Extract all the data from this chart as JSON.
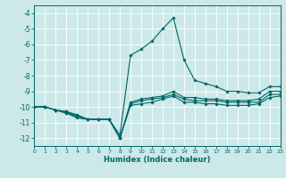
{
  "xlabel": "Humidex (Indice chaleur)",
  "background_color": "#cce8e8",
  "grid_color": "#ffffff",
  "line_color": "#006666",
  "xlim": [
    0,
    23
  ],
  "ylim": [
    -12.5,
    -3.5
  ],
  "yticks": [
    -12,
    -11,
    -10,
    -9,
    -8,
    -7,
    -6,
    -5,
    -4
  ],
  "xticks": [
    0,
    1,
    2,
    3,
    4,
    5,
    6,
    7,
    8,
    9,
    10,
    11,
    12,
    13,
    14,
    15,
    16,
    17,
    18,
    19,
    20,
    21,
    22,
    23
  ],
  "hours": [
    0,
    1,
    2,
    3,
    4,
    5,
    6,
    7,
    8,
    9,
    10,
    11,
    12,
    13,
    14,
    15,
    16,
    17,
    18,
    19,
    20,
    21,
    22,
    23
  ],
  "line1": [
    -10.0,
    -10.0,
    -10.2,
    -10.3,
    -10.5,
    -10.8,
    -10.8,
    -10.8,
    -11.8,
    -6.7,
    -6.3,
    -5.8,
    -5.0,
    -4.3,
    -7.0,
    -8.3,
    -8.5,
    -8.7,
    -9.0,
    -9.0,
    -9.1,
    -9.1,
    -8.7,
    -8.7
  ],
  "line2": [
    -10.0,
    -10.0,
    -10.2,
    -10.3,
    -10.6,
    -10.8,
    -10.8,
    -10.8,
    -12.0,
    -9.7,
    -9.5,
    -9.4,
    -9.3,
    -9.0,
    -9.4,
    -9.4,
    -9.5,
    -9.5,
    -9.6,
    -9.6,
    -9.6,
    -9.5,
    -9.0,
    -9.0
  ],
  "line3": [
    -10.0,
    -10.0,
    -10.2,
    -10.4,
    -10.6,
    -10.8,
    -10.8,
    -10.8,
    -12.0,
    -9.8,
    -9.6,
    -9.5,
    -9.4,
    -9.2,
    -9.5,
    -9.6,
    -9.6,
    -9.6,
    -9.7,
    -9.7,
    -9.7,
    -9.7,
    -9.2,
    -9.2
  ],
  "line4": [
    -10.0,
    -10.0,
    -10.2,
    -10.4,
    -10.7,
    -10.8,
    -10.8,
    -10.8,
    -12.0,
    -9.9,
    -9.8,
    -9.7,
    -9.5,
    -9.3,
    -9.7,
    -9.7,
    -9.8,
    -9.8,
    -9.9,
    -9.9,
    -9.9,
    -9.8,
    -9.4,
    -9.3
  ]
}
